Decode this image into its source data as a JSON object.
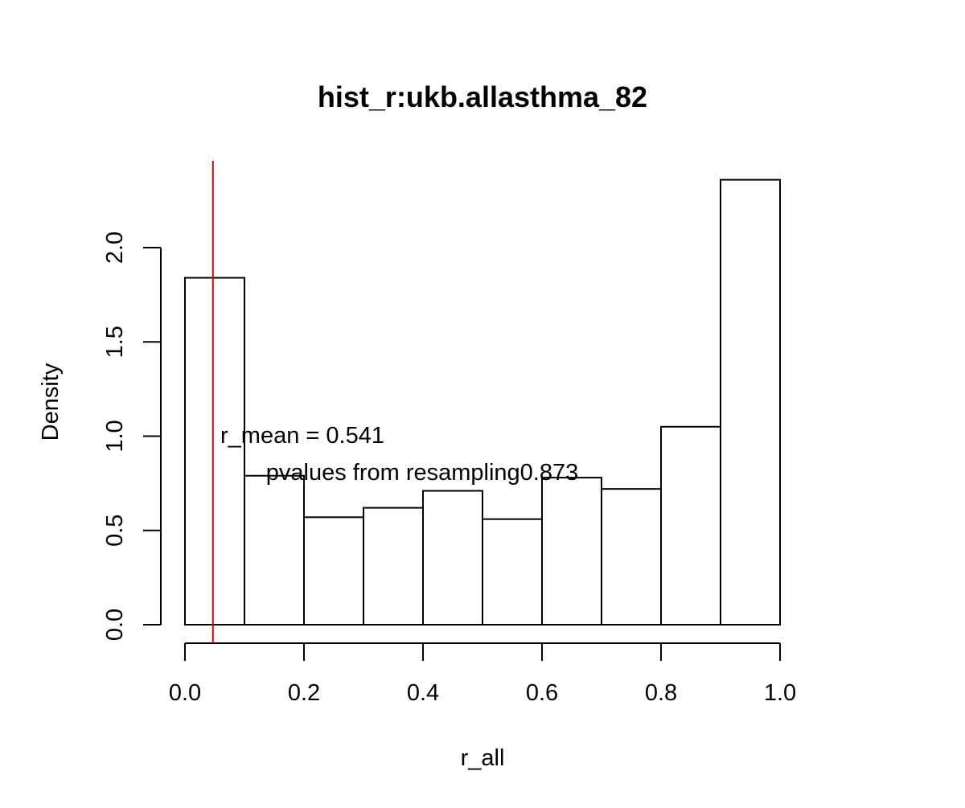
{
  "chart_data": {
    "type": "bar",
    "subtype": "histogram",
    "title": "hist_r:ukb.allasthma_82",
    "xlabel": "r_all",
    "ylabel": "Density",
    "bin_edges": [
      0.0,
      0.1,
      0.2,
      0.3,
      0.4,
      0.5,
      0.6,
      0.7,
      0.8,
      0.9,
      1.0
    ],
    "values": [
      1.84,
      0.79,
      0.57,
      0.62,
      0.71,
      0.56,
      0.78,
      0.72,
      1.05,
      2.36
    ],
    "xlim": [
      0.0,
      1.0
    ],
    "ylim": [
      0.0,
      2.0
    ],
    "x_ticks": [
      0.0,
      0.2,
      0.4,
      0.6,
      0.8,
      1.0
    ],
    "x_tick_labels": [
      "0.0",
      "0.2",
      "0.4",
      "0.6",
      "0.8",
      "1.0"
    ],
    "y_ticks": [
      0.0,
      0.5,
      1.0,
      1.5,
      2.0
    ],
    "y_tick_labels": [
      "0.0",
      "0.5",
      "1.0",
      "1.5",
      "2.0"
    ],
    "reference_line": {
      "x": 0.047,
      "color": "#dd0000"
    },
    "annotations": [
      {
        "text": "r_mean = 0.541"
      },
      {
        "text": "pvalues from resampling0.873"
      }
    ],
    "colors": {
      "bar_fill": "#ffffff",
      "bar_stroke": "#000000",
      "axis": "#000000",
      "reference_line": "#dd0000"
    },
    "grid": false,
    "legend": "none"
  }
}
